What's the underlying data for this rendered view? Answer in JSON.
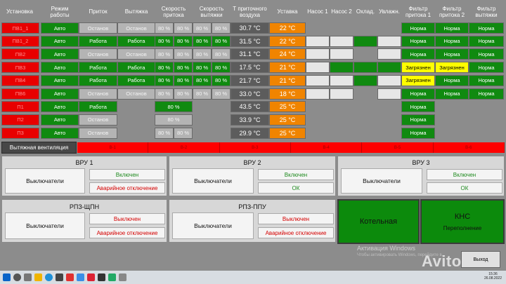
{
  "headers": {
    "ustanovka": "Установка",
    "rezhim": [
      "Режим",
      "работы"
    ],
    "pritok": "Приток",
    "vytyazhka": "Вытяжка",
    "skor_pritoka": [
      "Скорость",
      "притока"
    ],
    "skor_vytyazhki": [
      "Скорость",
      "вытяжки"
    ],
    "t_pritoch": [
      "Т приточного",
      "воздуха"
    ],
    "ustavka": "Уставка",
    "nasos1": "Насос 1",
    "nasos2": "Насос 2",
    "okhlad": "Охлад.",
    "uvlazhn": "Увлажн.",
    "filtr_pr1": [
      "Фильтр",
      "притока 1"
    ],
    "filtr_pr2": [
      "Фильтр",
      "притока 2"
    ],
    "filtr_vyt": [
      "Фильтр",
      "вытяжки"
    ]
  },
  "rows": [
    {
      "name": "ПВ1_1",
      "mode": "Авто",
      "pritok": "Останов",
      "pritok_state": "grey",
      "vyt": "Останов",
      "vyt_state": "grey",
      "sp": [
        "80 %",
        "80 %"
      ],
      "sv": [
        "80 %",
        "80 %"
      ],
      "temp": "30.7 °C",
      "set": "22 °C",
      "pumps": [
        "blank",
        "blank",
        "blank",
        "blank"
      ],
      "f1": "Норма",
      "f1_state": "green",
      "f2": "Норма",
      "f2_state": "green",
      "fv": "Норма",
      "fv_state": "green"
    },
    {
      "name": "ПВ1_2",
      "mode": "Авто",
      "pritok": "Работа",
      "pritok_state": "green",
      "vyt": "Работа",
      "vyt_state": "green",
      "sp": [
        "80 %",
        "80 %"
      ],
      "sv": [
        "80 %",
        "80 %"
      ],
      "temp": "31.5 °C",
      "set": "22 °C",
      "pumps": [
        "white",
        "white",
        "green",
        "white"
      ],
      "f1": "Норма",
      "f1_state": "green",
      "f2": "Норма",
      "f2_state": "green",
      "fv": "Норма",
      "fv_state": "green"
    },
    {
      "name": "ПВ2",
      "mode": "Авто",
      "pritok": "Останов",
      "pritok_state": "grey",
      "vyt": "Останов",
      "vyt_state": "grey",
      "sp": [
        "80 %",
        "80 %"
      ],
      "sv": [
        "80 %",
        "80 %"
      ],
      "temp": "31.1 °C",
      "set": "24 °C",
      "pumps": [
        "white",
        "white",
        "blank",
        "white"
      ],
      "f1": "Норма",
      "f1_state": "green",
      "f2": "Норма",
      "f2_state": "green",
      "fv": "Норма",
      "fv_state": "green"
    },
    {
      "name": "ПВ3",
      "mode": "Авто",
      "pritok": "Работа",
      "pritok_state": "green",
      "vyt": "Работа",
      "vyt_state": "green",
      "sp": [
        "80 %",
        "80 %"
      ],
      "sv": [
        "80 %",
        "80 %"
      ],
      "temp": "17.5 °C",
      "set": "21 °C",
      "pumps": [
        "white",
        "green",
        "green",
        "green"
      ],
      "f1": "Загрязнен",
      "f1_state": "yellow",
      "f2": "Загрязнен",
      "f2_state": "yellow",
      "fv": "Норма",
      "fv_state": "green"
    },
    {
      "name": "ПВ4",
      "mode": "Авто",
      "pritok": "Работа",
      "pritok_state": "green",
      "vyt": "Работа",
      "vyt_state": "green",
      "sp": [
        "80 %",
        "80 %"
      ],
      "sv": [
        "80 %",
        "80 %"
      ],
      "temp": "21.7 °C",
      "set": "21 °C",
      "pumps": [
        "white",
        "white",
        "green",
        "white"
      ],
      "f1": "Загрязнен",
      "f1_state": "yellow",
      "f2": "Норма",
      "f2_state": "green",
      "fv": "Норма",
      "fv_state": "green"
    },
    {
      "name": "ПВ6",
      "mode": "Авто",
      "pritok": "Останов",
      "pritok_state": "grey",
      "vyt": "Останов",
      "vyt_state": "grey",
      "sp": [
        "80 %",
        "80 %"
      ],
      "sv": [
        "80 %",
        "80 %"
      ],
      "temp": "33.0 °C",
      "set": "18 °C",
      "pumps": [
        "white",
        "white",
        "blank",
        "white"
      ],
      "f1": "Норма",
      "f1_state": "green",
      "f2": "Норма",
      "f2_state": "green",
      "fv": "Норма",
      "fv_state": "green"
    },
    {
      "name": "П1",
      "mode": "Авто",
      "pritok": "Работа",
      "pritok_state": "green",
      "vyt": "",
      "vyt_state": "none",
      "sp": [
        "80 %"
      ],
      "sv": [],
      "temp": "43.5 °C",
      "set": "25 °C",
      "pumps": [
        "none",
        "none",
        "none",
        "none"
      ],
      "f1": "Норма",
      "f1_state": "green",
      "f2": "",
      "f2_state": "none",
      "fv": "",
      "fv_state": "none"
    },
    {
      "name": "П2",
      "mode": "Авто",
      "pritok": "Останов",
      "pritok_state": "grey",
      "vyt": "",
      "vyt_state": "none",
      "sp": [
        "80 %"
      ],
      "sv": [],
      "temp": "33.9 °C",
      "set": "25 °C",
      "pumps": [
        "none",
        "none",
        "none",
        "none"
      ],
      "f1": "Норма",
      "f1_state": "green",
      "f2": "",
      "f2_state": "none",
      "fv": "",
      "fv_state": "none"
    },
    {
      "name": "П3",
      "mode": "Авто",
      "pritok": "Останов",
      "pritok_state": "grey",
      "vyt": "",
      "vyt_state": "none",
      "sp": [
        "80 %",
        "80 %"
      ],
      "sv": [],
      "temp": "29.9 °C",
      "set": "25 °C",
      "pumps": [
        "none",
        "none",
        "none",
        "none"
      ],
      "f1": "Норма",
      "f1_state": "green",
      "f2": "",
      "f2_state": "none",
      "fv": "",
      "fv_state": "none"
    }
  ],
  "vent": {
    "label": "Вытяжная вентиляция",
    "segments": [
      "В-1",
      "В-2",
      "В-3",
      "В-4",
      "В-5",
      "В-6"
    ]
  },
  "panels": {
    "vru1": {
      "title": "ВРУ 1",
      "left": "Выключатели",
      "btn1": "Включен",
      "btn2": "Аварийное отключение"
    },
    "vru2": {
      "title": "ВРУ 2",
      "left": "Выключатели",
      "btn1": "Включен",
      "btn2": "ОК"
    },
    "vru3": {
      "title": "ВРУ 3",
      "left": "Выключатели",
      "btn1": "Включен",
      "btn2": "ОК"
    },
    "rpz_shchpn": {
      "title": "РПЗ-ЩПН",
      "left": "Выключатели",
      "btn1": "Выключен",
      "btn2": "Аварийное отключение"
    },
    "rpz_ppu": {
      "title": "РПЗ-ППУ",
      "left": "Выключатели",
      "btn1": "Выключен",
      "btn2": "Аварийное отключение"
    }
  },
  "kotelnaya": "Котельная",
  "kns": {
    "title": "КНС",
    "status": "Переполнение"
  },
  "exit_label": "Выход",
  "activation": {
    "line1": "Активация Windows",
    "line2": "Чтобы активировать Windows, перейдите в..."
  },
  "watermark": "Avito",
  "clock": {
    "time": "15:36",
    "date": "26.08.2022"
  },
  "colors": {
    "alarm": "#e80000",
    "ok": "#108a10",
    "idle": "#b4b4b4",
    "setpoint": "#f08400",
    "warning": "#ffff00"
  }
}
